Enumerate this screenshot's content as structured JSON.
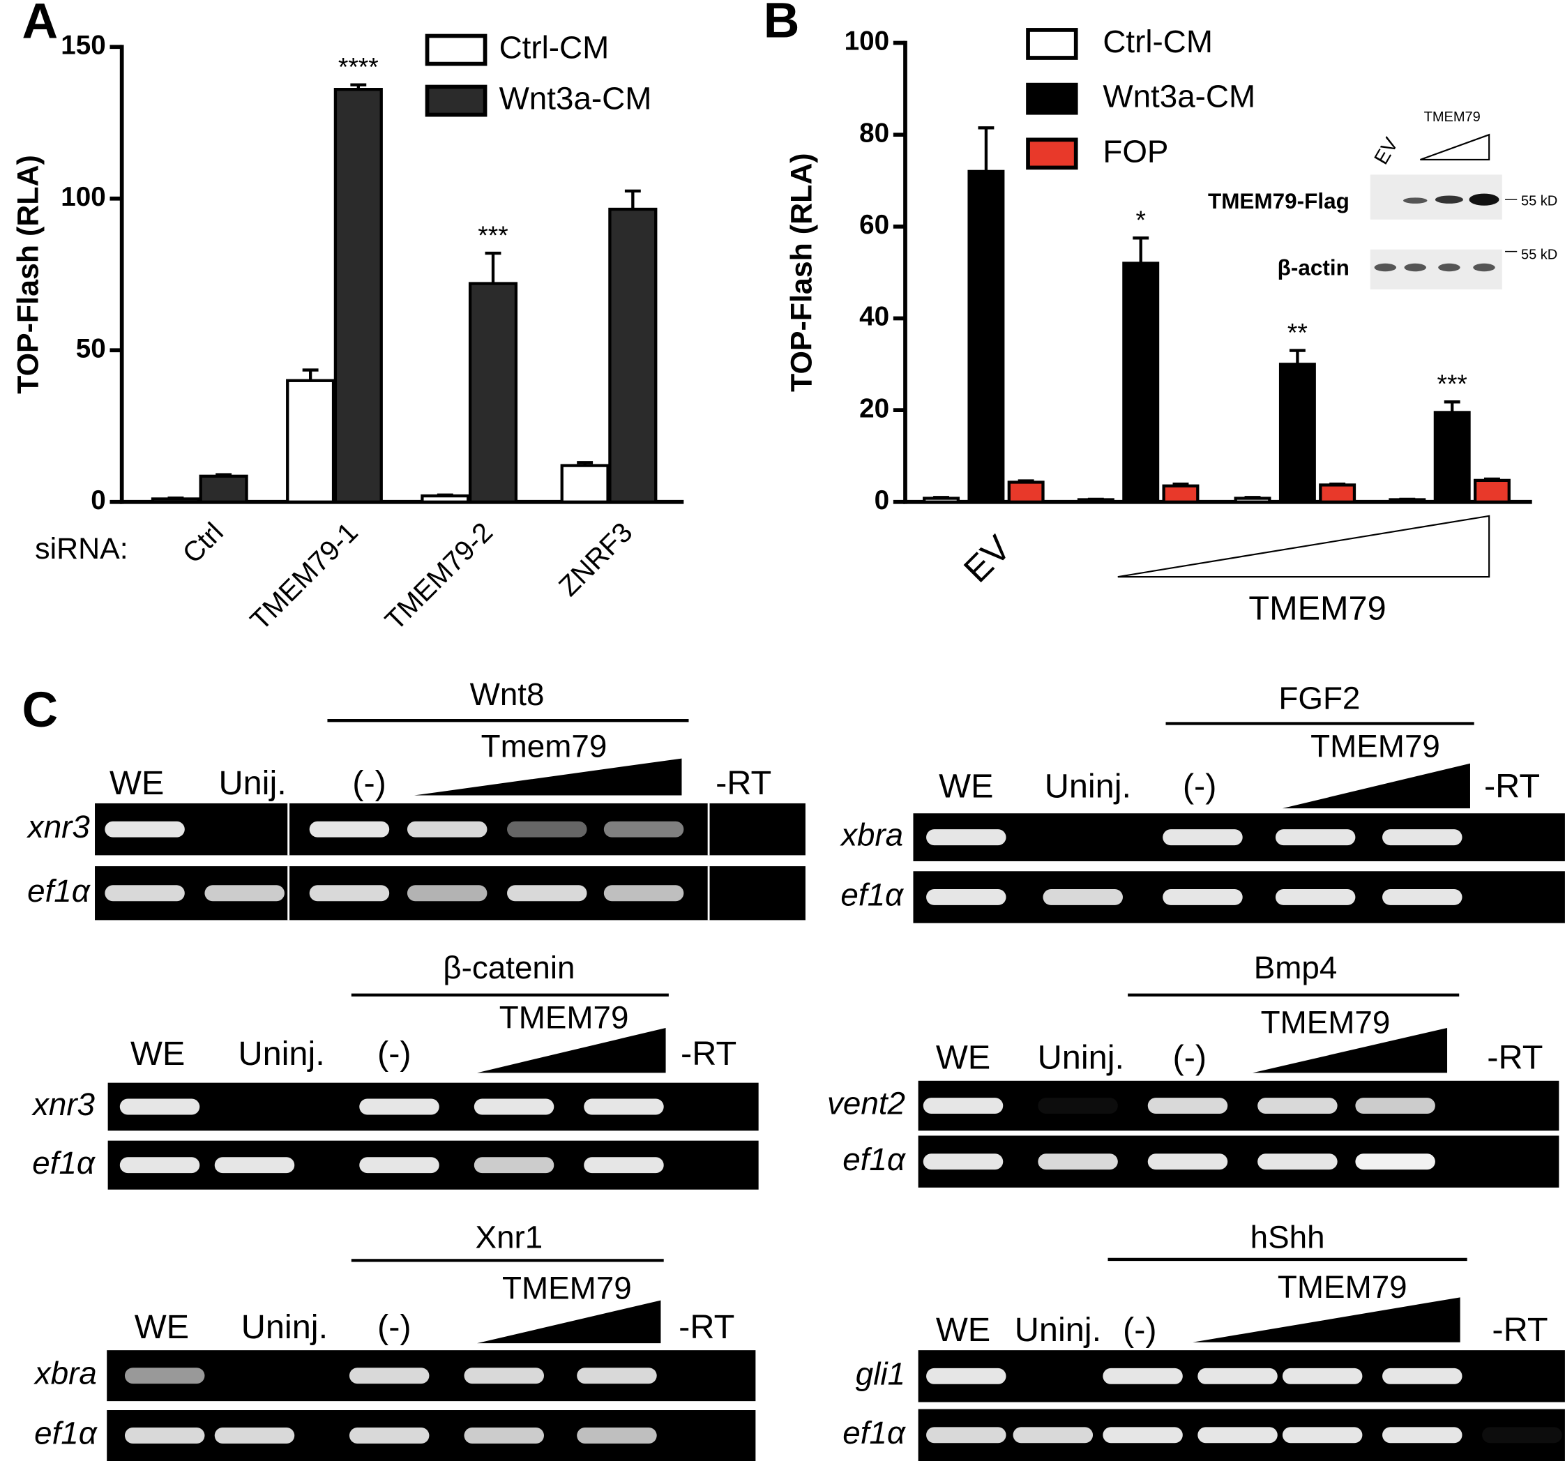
{
  "panel_labels": [
    "A",
    "B",
    "C"
  ],
  "chart_data": [
    {
      "type": "bar",
      "ylabel": "TOP-Flash (RLA)",
      "x_prefix": "siRNA:",
      "categories": [
        "Ctrl",
        "TMEM79-1",
        "TMEM79-2",
        "ZNRF3"
      ],
      "series": [
        {
          "name": "Ctrl-CM",
          "color": "#ffffff",
          "edgecolor": "#000000",
          "values": [
            1,
            40,
            2,
            12
          ],
          "errors": [
            0.3,
            3.5,
            0.3,
            1
          ]
        },
        {
          "name": "Wnt3a-CM",
          "color": "#2b2b2b",
          "edgecolor": "#000000",
          "values": [
            8.5,
            136,
            72,
            96.5
          ],
          "errors": [
            0.5,
            1.5,
            10,
            6
          ]
        }
      ],
      "significance": [
        null,
        "****",
        "***",
        null
      ],
      "ylim": [
        0,
        150
      ],
      "yticks": [
        0,
        50,
        100,
        150
      ]
    },
    {
      "type": "bar",
      "ylabel": "TOP-Flash (RLA)",
      "dose_label": "TMEM79",
      "categories": [
        "EV",
        null,
        null,
        null
      ],
      "series": [
        {
          "name": "Ctrl-CM",
          "color": "#ffffff",
          "edgecolor": "#000000",
          "values": [
            0.8,
            0.5,
            0.8,
            0.5
          ],
          "errors": [
            0.2,
            0.1,
            0.2,
            0.1
          ]
        },
        {
          "name": "Wnt3a-CM",
          "color": "#000000",
          "edgecolor": "#000000",
          "values": [
            72,
            52,
            30,
            19.5
          ],
          "errors": [
            9.5,
            5.5,
            3,
            2.3
          ]
        },
        {
          "name": "FOP",
          "color": "#e8392a",
          "edgecolor": "#000000",
          "values": [
            4.3,
            3.5,
            3.7,
            4.7
          ],
          "errors": [
            0.3,
            0.4,
            0.2,
            0.3
          ]
        }
      ],
      "significance": [
        null,
        "*",
        "**",
        "***"
      ],
      "ylim": [
        0,
        100
      ],
      "yticks": [
        0,
        20,
        40,
        60,
        80,
        100
      ]
    }
  ],
  "blot_inset": {
    "lane_label": "EV",
    "dose_label": "TMEM79",
    "rows": [
      "TMEM79-Flag",
      "β-actin"
    ],
    "markers": [
      "55 kD",
      "55 kD"
    ]
  },
  "gels": [
    {
      "title": "Wnt8",
      "dose_label": "Tmem79",
      "lanes": [
        "WE",
        "Unij.",
        "(-)",
        "-RT"
      ],
      "rows": [
        {
          "gene": "xnr3",
          "bands": [
            0.9,
            0,
            0.9,
            0.85,
            0.4,
            0.5,
            0
          ]
        },
        {
          "gene": "ef1α",
          "bands": [
            0.85,
            0.8,
            0.85,
            0.7,
            0.85,
            0.75,
            0
          ]
        }
      ]
    },
    {
      "title": "FGF2",
      "dose_label": "TMEM79",
      "lanes": [
        "WE",
        "Uninj.",
        "(-)",
        "-RT"
      ],
      "rows": [
        {
          "gene": "xbra",
          "bands": [
            0.9,
            0,
            0.9,
            0.9,
            0.9,
            0
          ]
        },
        {
          "gene": "ef1α",
          "bands": [
            0.9,
            0.85,
            0.9,
            0.9,
            0.9,
            0
          ]
        }
      ]
    },
    {
      "title": "β-catenin",
      "dose_label": "TMEM79",
      "lanes": [
        "WE",
        "Uninj.",
        "(-)",
        "-RT"
      ],
      "rows": [
        {
          "gene": "xnr3",
          "bands": [
            0.9,
            0,
            0.9,
            0.9,
            0.9,
            0
          ]
        },
        {
          "gene": "ef1α",
          "bands": [
            0.9,
            0.9,
            0.9,
            0.8,
            0.9,
            0
          ]
        }
      ]
    },
    {
      "title": "Bmp4",
      "dose_label": "TMEM79",
      "lanes": [
        "WE",
        "Uninj.",
        "(-)",
        "-RT"
      ],
      "rows": [
        {
          "gene": "vent2",
          "bands": [
            0.9,
            0.05,
            0.85,
            0.85,
            0.8,
            0
          ]
        },
        {
          "gene": "ef1α",
          "bands": [
            0.9,
            0.85,
            0.9,
            0.9,
            0.95,
            0
          ]
        }
      ]
    },
    {
      "title": "Xnr1",
      "dose_label": "TMEM79",
      "lanes": [
        "WE",
        "Uninj.",
        "(-)",
        "-RT"
      ],
      "rows": [
        {
          "gene": "xbra",
          "bands": [
            0.6,
            0,
            0.85,
            0.85,
            0.85,
            0
          ]
        },
        {
          "gene": "ef1α",
          "bands": [
            0.85,
            0.85,
            0.85,
            0.8,
            0.75,
            0
          ]
        }
      ]
    },
    {
      "title": "hShh",
      "dose_label": "TMEM79",
      "lanes": [
        "WE",
        "Uninj.",
        "(-)",
        "-RT"
      ],
      "rows": [
        {
          "gene": "gli1",
          "bands": [
            0.9,
            0,
            0.9,
            0.9,
            0.9,
            0.9,
            0
          ]
        },
        {
          "gene": "ef1α",
          "bands": [
            0.85,
            0.85,
            0.9,
            0.9,
            0.9,
            0.9,
            0.05
          ]
        }
      ]
    }
  ]
}
